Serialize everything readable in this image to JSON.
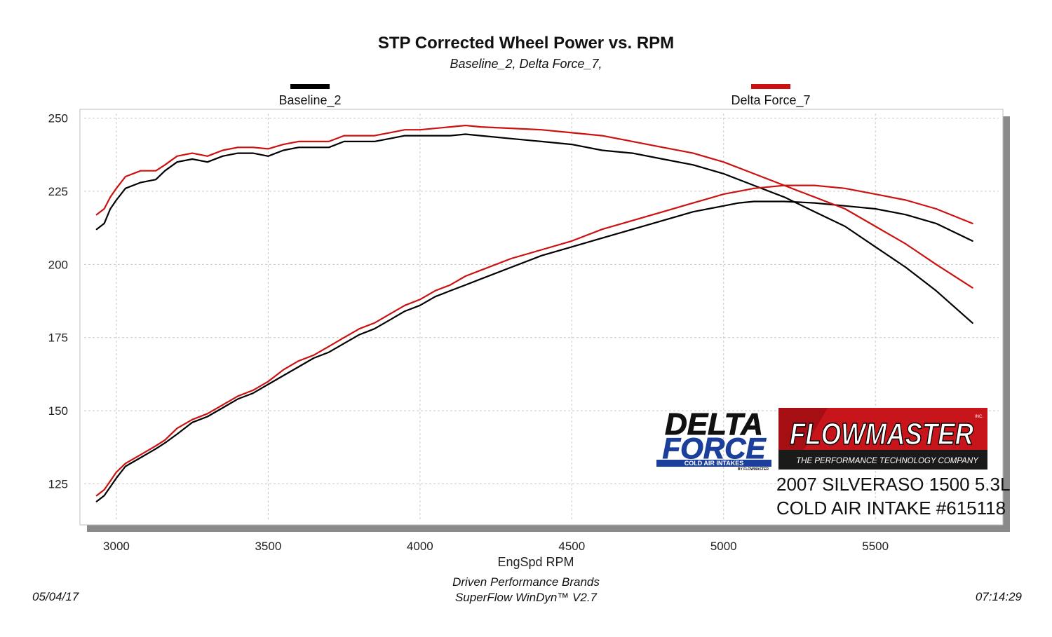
{
  "chart_data": {
    "type": "line",
    "title": "STP Corrected Wheel Power vs. RPM",
    "subtitle": "Baseline_2, Delta Force_7,",
    "xlabel": "EngSpd  RPM",
    "ylabel": "",
    "xlim": [
      2880,
      5920
    ],
    "ylim": [
      111,
      253
    ],
    "xticks": [
      3000,
      3500,
      4000,
      4500,
      5000,
      5500
    ],
    "yticks": [
      125,
      150,
      175,
      200,
      225,
      250
    ],
    "grid": true,
    "legend_position": "top",
    "series": [
      {
        "name": "Baseline_2",
        "color": "#000000",
        "curves": [
          {
            "label": "power",
            "points": [
              [
                2935,
                212
              ],
              [
                2960,
                214
              ],
              [
                2980,
                219
              ],
              [
                3000,
                222
              ],
              [
                3030,
                226
              ],
              [
                3080,
                228
              ],
              [
                3130,
                229
              ],
              [
                3160,
                232
              ],
              [
                3200,
                235
              ],
              [
                3250,
                236
              ],
              [
                3300,
                235
              ],
              [
                3350,
                237
              ],
              [
                3400,
                238
              ],
              [
                3450,
                238
              ],
              [
                3500,
                237
              ],
              [
                3550,
                239
              ],
              [
                3600,
                240
              ],
              [
                3650,
                240
              ],
              [
                3700,
                240
              ],
              [
                3750,
                242
              ],
              [
                3800,
                242
              ],
              [
                3850,
                242
              ],
              [
                3900,
                243
              ],
              [
                3950,
                244
              ],
              [
                4000,
                244
              ],
              [
                4100,
                244
              ],
              [
                4150,
                244.5
              ],
              [
                4200,
                244
              ],
              [
                4300,
                243
              ],
              [
                4400,
                242
              ],
              [
                4500,
                241
              ],
              [
                4600,
                239
              ],
              [
                4700,
                238
              ],
              [
                4800,
                236
              ],
              [
                4900,
                234
              ],
              [
                5000,
                231
              ],
              [
                5100,
                227
              ],
              [
                5200,
                223
              ],
              [
                5300,
                218
              ],
              [
                5400,
                213
              ],
              [
                5500,
                206
              ],
              [
                5600,
                199
              ],
              [
                5700,
                191
              ],
              [
                5820,
                180
              ]
            ]
          },
          {
            "label": "torque",
            "points": [
              [
                2935,
                119
              ],
              [
                2960,
                121
              ],
              [
                2980,
                124
              ],
              [
                3000,
                127
              ],
              [
                3030,
                131
              ],
              [
                3080,
                134
              ],
              [
                3130,
                137
              ],
              [
                3160,
                139
              ],
              [
                3200,
                142
              ],
              [
                3250,
                146
              ],
              [
                3300,
                148
              ],
              [
                3350,
                151
              ],
              [
                3400,
                154
              ],
              [
                3450,
                156
              ],
              [
                3500,
                159
              ],
              [
                3550,
                162
              ],
              [
                3600,
                165
              ],
              [
                3650,
                168
              ],
              [
                3700,
                170
              ],
              [
                3750,
                173
              ],
              [
                3800,
                176
              ],
              [
                3850,
                178
              ],
              [
                3900,
                181
              ],
              [
                3950,
                184
              ],
              [
                4000,
                186
              ],
              [
                4050,
                189
              ],
              [
                4100,
                191
              ],
              [
                4150,
                193
              ],
              [
                4200,
                195
              ],
              [
                4300,
                199
              ],
              [
                4400,
                203
              ],
              [
                4500,
                206
              ],
              [
                4600,
                209
              ],
              [
                4700,
                212
              ],
              [
                4800,
                215
              ],
              [
                4900,
                218
              ],
              [
                5000,
                220
              ],
              [
                5050,
                221
              ],
              [
                5100,
                221.5
              ],
              [
                5200,
                221.5
              ],
              [
                5300,
                221
              ],
              [
                5400,
                220
              ],
              [
                5500,
                219
              ],
              [
                5600,
                217
              ],
              [
                5700,
                214
              ],
              [
                5820,
                208
              ]
            ]
          }
        ]
      },
      {
        "name": "Delta Force_7",
        "color": "#cc1111",
        "curves": [
          {
            "label": "power",
            "points": [
              [
                2935,
                217
              ],
              [
                2960,
                219
              ],
              [
                2980,
                223
              ],
              [
                3000,
                226
              ],
              [
                3030,
                230
              ],
              [
                3080,
                232
              ],
              [
                3130,
                232
              ],
              [
                3160,
                234
              ],
              [
                3200,
                237
              ],
              [
                3250,
                238
              ],
              [
                3300,
                237
              ],
              [
                3350,
                239
              ],
              [
                3400,
                240
              ],
              [
                3450,
                240
              ],
              [
                3500,
                239.5
              ],
              [
                3550,
                241
              ],
              [
                3600,
                242
              ],
              [
                3650,
                242
              ],
              [
                3700,
                242
              ],
              [
                3750,
                244
              ],
              [
                3800,
                244
              ],
              [
                3850,
                244
              ],
              [
                3900,
                245
              ],
              [
                3950,
                246
              ],
              [
                4000,
                246
              ],
              [
                4100,
                247
              ],
              [
                4150,
                247.5
              ],
              [
                4200,
                247
              ],
              [
                4300,
                246.5
              ],
              [
                4400,
                246
              ],
              [
                4500,
                245
              ],
              [
                4600,
                244
              ],
              [
                4700,
                242
              ],
              [
                4800,
                240
              ],
              [
                4900,
                238
              ],
              [
                5000,
                235
              ],
              [
                5100,
                231
              ],
              [
                5200,
                227
              ],
              [
                5300,
                223
              ],
              [
                5400,
                219
              ],
              [
                5500,
                213
              ],
              [
                5600,
                207
              ],
              [
                5700,
                200
              ],
              [
                5820,
                192
              ]
            ]
          },
          {
            "label": "torque",
            "points": [
              [
                2935,
                121
              ],
              [
                2960,
                123
              ],
              [
                2980,
                126
              ],
              [
                3000,
                129
              ],
              [
                3030,
                132
              ],
              [
                3080,
                135
              ],
              [
                3130,
                138
              ],
              [
                3160,
                140
              ],
              [
                3200,
                144
              ],
              [
                3250,
                147
              ],
              [
                3300,
                149
              ],
              [
                3350,
                152
              ],
              [
                3400,
                155
              ],
              [
                3450,
                157
              ],
              [
                3500,
                160
              ],
              [
                3550,
                164
              ],
              [
                3600,
                167
              ],
              [
                3650,
                169
              ],
              [
                3700,
                172
              ],
              [
                3750,
                175
              ],
              [
                3800,
                178
              ],
              [
                3850,
                180
              ],
              [
                3900,
                183
              ],
              [
                3950,
                186
              ],
              [
                4000,
                188
              ],
              [
                4050,
                191
              ],
              [
                4100,
                193
              ],
              [
                4150,
                196
              ],
              [
                4200,
                198
              ],
              [
                4300,
                202
              ],
              [
                4400,
                205
              ],
              [
                4500,
                208
              ],
              [
                4600,
                212
              ],
              [
                4700,
                215
              ],
              [
                4800,
                218
              ],
              [
                4900,
                221
              ],
              [
                5000,
                224
              ],
              [
                5100,
                226
              ],
              [
                5200,
                227
              ],
              [
                5300,
                227
              ],
              [
                5400,
                226
              ],
              [
                5500,
                224
              ],
              [
                5600,
                222
              ],
              [
                5700,
                219
              ],
              [
                5820,
                214
              ]
            ]
          }
        ]
      }
    ],
    "annotations": {
      "vehicle_line1": "2007 SILVERASO 1500 5.3L",
      "vehicle_line2": "COLD AIR INTAKE #615118"
    }
  },
  "logos": {
    "delta_force": {
      "line1": "DELTA",
      "line2": "FORCE",
      "line3": "COLD AIR INTAKES",
      "line4": "BY FLOWMASTER",
      "blue": "#1b3f9b"
    },
    "flowmaster": {
      "name": "FLOWMASTER",
      "tagline": "THE PERFORMANCE TECHNOLOGY COMPANY",
      "mark": "INC.",
      "red": "#c8151b"
    }
  },
  "footer": {
    "company": "Driven Performance Brands",
    "software": "SuperFlow WinDyn™  V2.7",
    "date": "05/04/17",
    "time": "07:14:29"
  }
}
